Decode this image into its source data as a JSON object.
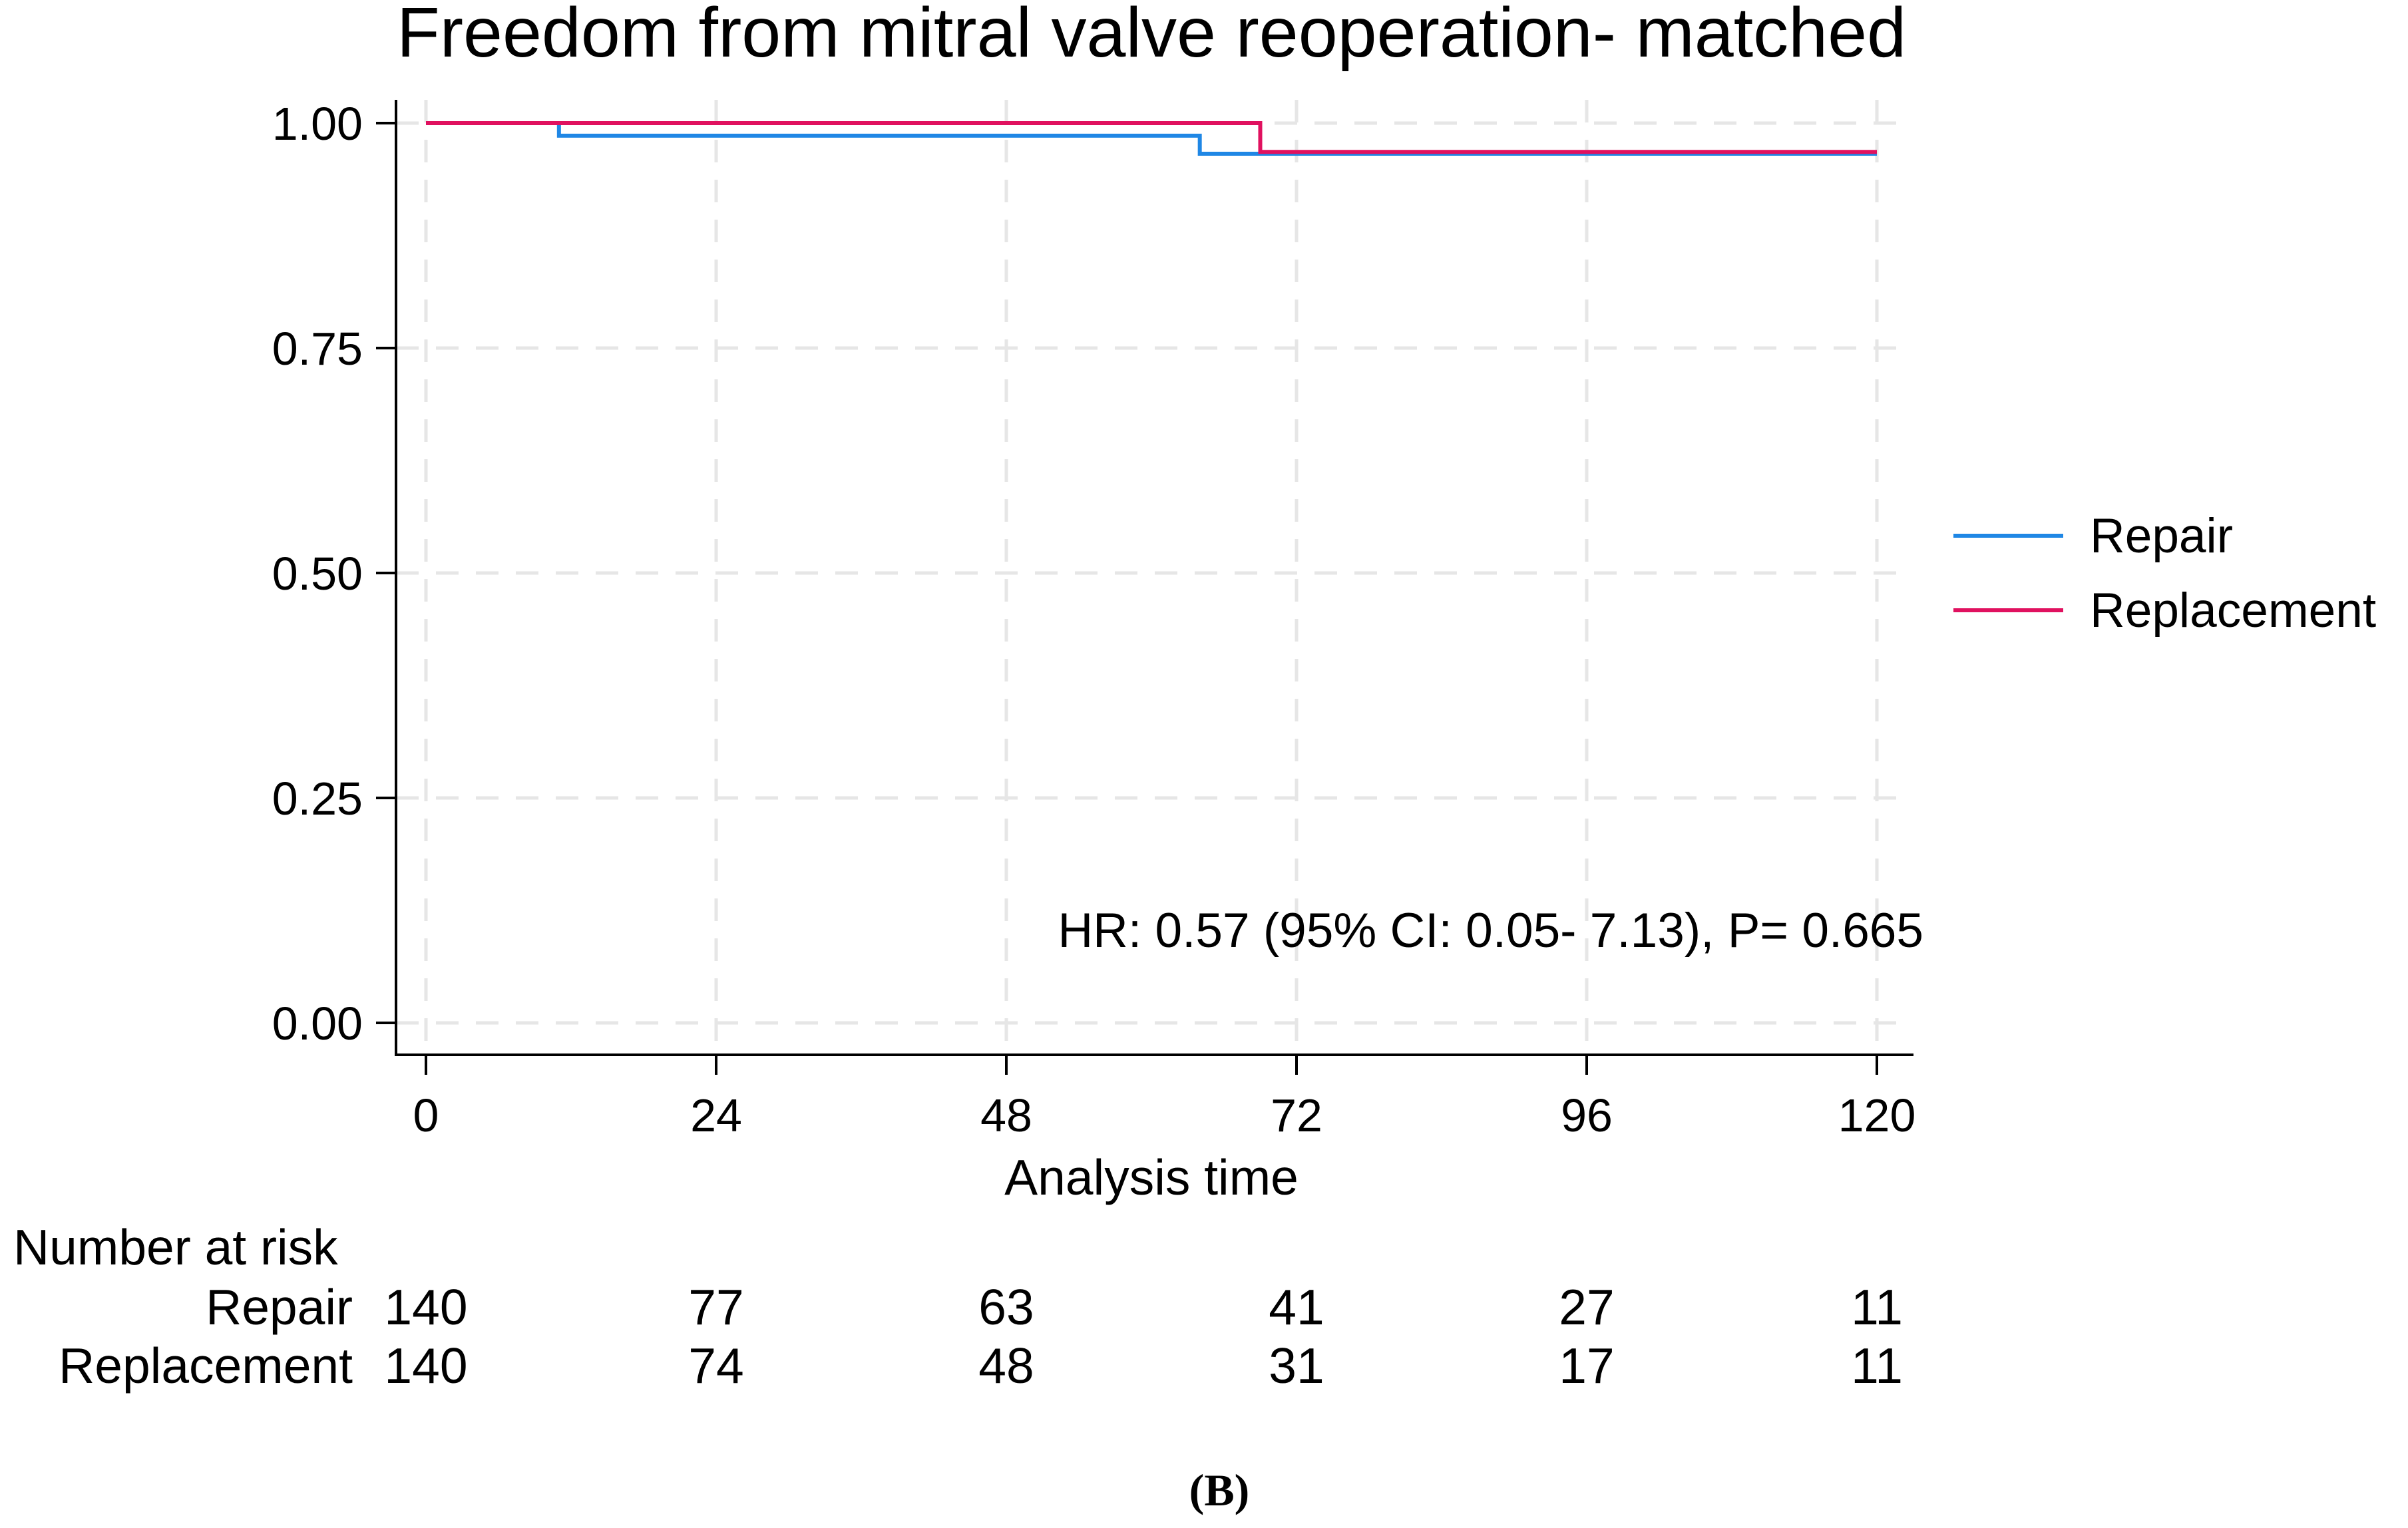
{
  "chart_data": {
    "type": "line",
    "subtype": "kaplan-meier",
    "title": "Freedom from mitral valve reoperation- matched",
    "xlabel": "Analysis time",
    "ylabel": "",
    "xlim": [
      0,
      120
    ],
    "ylim": [
      0,
      1
    ],
    "x_ticks": [
      "0",
      "24",
      "48",
      "72",
      "96",
      "120"
    ],
    "y_ticks": [
      "0.00",
      "0.25",
      "0.50",
      "0.75",
      "1.00"
    ],
    "grid": true,
    "legend_position": "right",
    "series": [
      {
        "name": "Repair",
        "color": "#1f87e5",
        "steps": [
          [
            0,
            1.0
          ],
          [
            11,
            0.986
          ],
          [
            64,
            0.986
          ],
          [
            64,
            0.966
          ],
          [
            120,
            0.966
          ]
        ]
      },
      {
        "name": "Replacement",
        "color": "#e0115f",
        "steps": [
          [
            0,
            1.0
          ],
          [
            69,
            1.0
          ],
          [
            69,
            0.968
          ],
          [
            120,
            0.968
          ]
        ]
      }
    ],
    "annotation": "HR: 0.57 (95% CI: 0.05- 7.13), P= 0.665",
    "risk_table": {
      "header": "Number at risk",
      "rows": [
        {
          "label": "Repair",
          "values": [
            "140",
            "77",
            "63",
            "41",
            "27",
            "11"
          ]
        },
        {
          "label": "Replacement",
          "values": [
            "140",
            "74",
            "48",
            "31",
            "17",
            "11"
          ]
        }
      ]
    },
    "panel_label": "(B)"
  }
}
